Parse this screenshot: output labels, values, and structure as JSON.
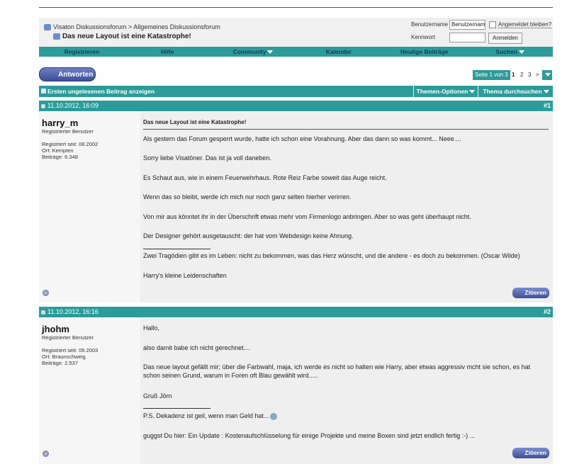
{
  "breadcrumb": {
    "forum": "Visaton Diskussionsforum",
    "separator": ">",
    "subforum": "Allgemeines Diskussionsforum",
    "thread_title": "Das neue Layout ist eine Katastrophe!"
  },
  "login": {
    "username_label": "Benutzername",
    "username_value": "Benutzernam",
    "remember_label": "Angemeldet bleiben?",
    "password_label": "Kennwort",
    "submit": "Anmelden"
  },
  "nav": [
    "Registrieren",
    "Hilfe",
    "Community",
    "Kalender",
    "Heutige Beiträge",
    "Suchen"
  ],
  "reply_button": "Antworten",
  "pager": {
    "label": "Seite 1 von 3",
    "pages": [
      "1",
      "2",
      "3"
    ],
    "current": "1",
    "next": ">"
  },
  "toolbar": {
    "first_unread": "Ersten ungelesenen Beitrag anzeigen",
    "thread_options": "Themen-Optionen",
    "search_thread": "Thema durchsuchen"
  },
  "colors": {
    "accent": "#2b9c9a"
  },
  "posts": [
    {
      "date": "11.10.2012, 16:09",
      "number": "#1",
      "user": "harry_m",
      "rank": "Registrierter Benutzer",
      "registered": "Registriert seit: 08.2002",
      "location": "Ort: Kempten",
      "posts": "Beiträge: 6.348",
      "title": "Das neue Layout ist eine Katastrophe!",
      "body": [
        "Als gestern das Forum gesperrt wurde, hatte ich schon eine Vorahnung. Aber das dann so was kommt... Neee....",
        "Sorry liebe Visatöner. Das ist ja voll daneben.",
        "Es Schaut aus, wie in einem Feuerwehrhaus. Rote Reiz Farbe soweit das Auge reicht.",
        "Wenn das so bleibt, werde ich mich nur noch ganz selten hierher verirren.",
        "Von mir aus könntet ihr in der Überschrift etwas mehr vom Firmenlogo anbringen. Aber so was geht überhaupt nicht.",
        "Der Designer gehört ausgetauscht: der hat vom Webdesign keine Ahnung."
      ],
      "signature": [
        "Zwei Tragödien gibt es im Leben: nicht zu bekommen, was das Herz wünscht, und die andere - es doch zu bekommen. (Oscar Wilde)",
        "Harry's kleine Leidenschaften"
      ],
      "quote": "Zitieren"
    },
    {
      "date": "11.10.2012, 16:16",
      "number": "#2",
      "user": "jhohm",
      "rank": "Registrierter Benutzer",
      "registered": "Registriert seit: 09.2003",
      "location": "Ort: Braunschweig",
      "posts": "Beiträge: 2.537",
      "body": [
        "Hallo,",
        "also damit babe ich nicht gerechnet....",
        "Das neue layout gefällt mir; über die Farbwahl, maja, ich werde es nicht so halten wie Harry, aber etwas aggressiv mcht sie schon, es hat schon seinen Grund, warum in Foren oft Blau gewählt wird.....",
        "Gruß Jörn"
      ],
      "signature": [
        "P.S. Dekadenz ist geil, wenn man Geld hat...",
        "guggst Du hier: Ein Update : Kostenaufschlüsselung für einige Projekte und meine Boxen sind jetzt endlich fertig :-) ..."
      ],
      "quote": "Zitieren"
    }
  ]
}
